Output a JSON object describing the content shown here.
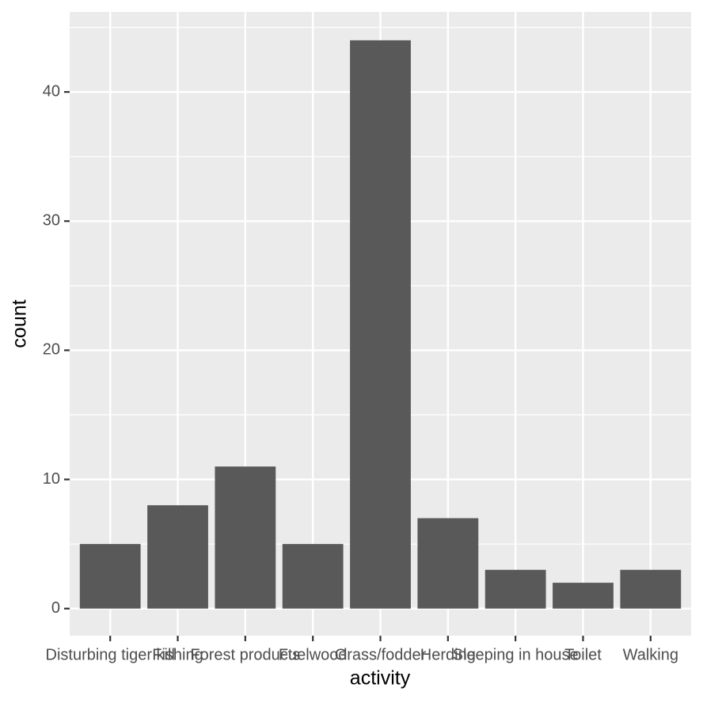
{
  "chart_data": {
    "type": "bar",
    "x_label": "activity",
    "y_label": "count",
    "categories": [
      "Disturbing tiger kill",
      "Fishing",
      "Forest products",
      "Fuelwood",
      "Grass/fodder",
      "Herding",
      "Sleeping in house",
      "Toilet",
      "Walking"
    ],
    "values": [
      5,
      8,
      11,
      5,
      44,
      7,
      3,
      2,
      3
    ],
    "color": "#595959",
    "ylim": [
      -2.1,
      46.2
    ],
    "yticks": [
      0,
      10,
      20,
      30,
      40
    ],
    "grid": true
  }
}
